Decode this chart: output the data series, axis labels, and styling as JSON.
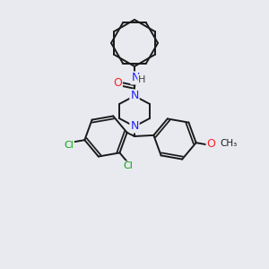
{
  "background_color": "#e8eaf0",
  "bond_color": "#1a1a1a",
  "atom_colors": {
    "N": "#2020ff",
    "O": "#ff2020",
    "Cl": "#00aa00",
    "C": "#1a1a1a",
    "H": "#404040"
  },
  "figsize": [
    3.0,
    3.0
  ],
  "dpi": 100,
  "lw": 1.4,
  "r_arom": 26,
  "r_cyc": 26,
  "r_pip": 18
}
